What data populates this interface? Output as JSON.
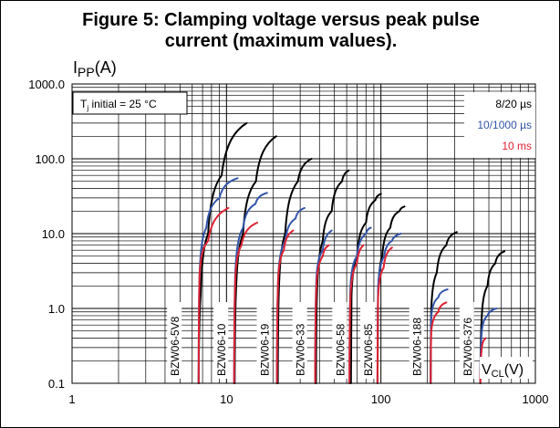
{
  "title_line1": "Figure 5: Clamping voltage versus peak pulse",
  "title_line2": "current (maximum values).",
  "chart_data": {
    "type": "line",
    "title": "Figure 5: Clamping voltage versus peak pulse current (maximum values).",
    "ylabel": "IPP(A)",
    "ylabel_main": "I",
    "ylabel_sub": "PP",
    "ylabel_unit": "(A)",
    "xlabel": "VCL(V)",
    "xlabel_main": "V",
    "xlabel_sub": "CL",
    "xlabel_unit": "(V)",
    "x_scale": "log",
    "y_scale": "log",
    "xlim": [
      1,
      1000
    ],
    "ylim": [
      0.1,
      1000
    ],
    "x_ticks": [
      {
        "v": 1,
        "label": "1"
      },
      {
        "v": 10,
        "label": "10"
      },
      {
        "v": 100,
        "label": "100"
      },
      {
        "v": 1000,
        "label": "1000"
      }
    ],
    "y_ticks": [
      {
        "v": 0.1,
        "label": "0.1"
      },
      {
        "v": 1,
        "label": "1.0"
      },
      {
        "v": 10,
        "label": "10.0"
      },
      {
        "v": 100,
        "label": "100.0"
      },
      {
        "v": 1000,
        "label": "1000.0"
      }
    ],
    "grid": true,
    "condition_label": "T",
    "condition_sub": "j",
    "condition_rest": " initial = 25 °C",
    "legend": [
      {
        "name": "8/20 µs",
        "color": "#000000"
      },
      {
        "name": "10/1000 µs",
        "color": "#3355aa"
      },
      {
        "name": "10 ms",
        "color": "#dd2233"
      }
    ],
    "devices": [
      {
        "name": "BZW06-5V8",
        "label_x": 4.6,
        "curves": [
          {
            "pulse": "8/20 µs",
            "color": "#000000",
            "points": [
              [
                6.6,
                0.1
              ],
              [
                6.8,
                1.5
              ],
              [
                7.6,
                10
              ],
              [
                9.3,
                60
              ],
              [
                13.5,
                300
              ]
            ]
          },
          {
            "pulse": "10/1000 µs",
            "color": "#3355aa",
            "points": [
              [
                6.6,
                0.1
              ],
              [
                6.7,
                3
              ],
              [
                7.4,
                12
              ],
              [
                9.0,
                30
              ],
              [
                11.8,
                55
              ]
            ]
          },
          {
            "pulse": "10 ms",
            "color": "#dd2233",
            "points": [
              [
                6.6,
                0.1
              ],
              [
                6.7,
                3
              ],
              [
                7.6,
                8
              ],
              [
                10.3,
                22
              ]
            ]
          }
        ]
      },
      {
        "name": "BZW06-10",
        "label_x": 9.2,
        "curves": [
          {
            "pulse": "8/20 µs",
            "color": "#000000",
            "points": [
              [
                11.3,
                0.1
              ],
              [
                11.5,
                1.5
              ],
              [
                12.8,
                10
              ],
              [
                15.5,
                50
              ],
              [
                21,
                200
              ]
            ]
          },
          {
            "pulse": "10/1000 µs",
            "color": "#3355aa",
            "points": [
              [
                11.2,
                0.1
              ],
              [
                11.4,
                3
              ],
              [
                12.8,
                12
              ],
              [
                15.4,
                25
              ],
              [
                18.3,
                35
              ]
            ]
          },
          {
            "pulse": "10 ms",
            "color": "#dd2233",
            "points": [
              [
                11.2,
                0.1
              ],
              [
                11.4,
                2.5
              ],
              [
                12.5,
                7
              ],
              [
                15.8,
                14
              ]
            ]
          }
        ]
      },
      {
        "name": "BZW06-19",
        "label_x": 17.5,
        "curves": [
          {
            "pulse": "8/20 µs",
            "color": "#000000",
            "points": [
              [
                21.5,
                0.1
              ],
              [
                21.8,
                1.5
              ],
              [
                24,
                10
              ],
              [
                29,
                50
              ],
              [
                35.5,
                100
              ]
            ]
          },
          {
            "pulse": "10/1000 µs",
            "color": "#3355aa",
            "points": [
              [
                21.2,
                0.1
              ],
              [
                21.6,
                2.5
              ],
              [
                24,
                8
              ],
              [
                28,
                16
              ],
              [
                32,
                22
              ]
            ]
          },
          {
            "pulse": "10 ms",
            "color": "#dd2233",
            "points": [
              [
                21.2,
                0.1
              ],
              [
                21.6,
                2.5
              ],
              [
                23.5,
                6
              ],
              [
                27,
                11
              ]
            ]
          }
        ]
      },
      {
        "name": "BZW06-33",
        "label_x": 29.8,
        "curves": [
          {
            "pulse": "8/20 µs",
            "color": "#000000",
            "points": [
              [
                38,
                0.1
              ],
              [
                38.5,
                1.5
              ],
              [
                42,
                8
              ],
              [
                48,
                20
              ],
              [
                56,
                50
              ],
              [
                62,
                70
              ]
            ]
          },
          {
            "pulse": "10/1000 µs",
            "color": "#3355aa",
            "points": [
              [
                37.5,
                0.1
              ],
              [
                38.2,
                2.5
              ],
              [
                42,
                6
              ],
              [
                48,
                11
              ]
            ]
          },
          {
            "pulse": "10 ms",
            "color": "#dd2233",
            "points": [
              [
                37.5,
                0.1
              ],
              [
                38.2,
                2
              ],
              [
                42,
                5
              ],
              [
                46,
                7
              ]
            ]
          }
        ]
      },
      {
        "name": "BZW06-58",
        "label_x": 54,
        "curves": [
          {
            "pulse": "8/20 µs",
            "color": "#000000",
            "points": [
              [
                64,
                0.1
              ],
              [
                64.5,
                1.5
              ],
              [
                70,
                5
              ],
              [
                80,
                14
              ],
              [
                92,
                28
              ],
              [
                100,
                34
              ]
            ]
          },
          {
            "pulse": "10/1000 µs",
            "color": "#3355aa",
            "points": [
              [
                62.5,
                0.1
              ],
              [
                63.5,
                2
              ],
              [
                70,
                5
              ],
              [
                80,
                10
              ],
              [
                86,
                12
              ]
            ]
          },
          {
            "pulse": "10 ms",
            "color": "#dd2233",
            "points": [
              [
                62.5,
                0.1
              ],
              [
                63.5,
                1.5
              ],
              [
                70,
                4
              ],
              [
                77,
                7
              ]
            ]
          }
        ]
      },
      {
        "name": "BZW06-85",
        "label_x": 82,
        "curves": [
          {
            "pulse": "8/20 µs",
            "color": "#000000",
            "points": [
              [
                95,
                0.1
              ],
              [
                95.8,
                1.5
              ],
              [
                102,
                5
              ],
              [
                115,
                12
              ],
              [
                132,
                20
              ],
              [
                142,
                23
              ]
            ]
          },
          {
            "pulse": "10/1000 µs",
            "color": "#3355aa",
            "points": [
              [
                95,
                0.1
              ],
              [
                96,
                2
              ],
              [
                105,
                5
              ],
              [
                118,
                8
              ],
              [
                135,
                10
              ]
            ]
          },
          {
            "pulse": "10 ms",
            "color": "#dd2233",
            "points": [
              [
                95,
                0.1
              ],
              [
                96,
                1.5
              ],
              [
                104,
                3.5
              ],
              [
                118,
                6.5
              ]
            ]
          }
        ]
      },
      {
        "name": "BZW06-188",
        "label_x": 170,
        "curves": [
          {
            "pulse": "8/20 µs",
            "color": "#000000",
            "points": [
              [
                210,
                0.1
              ],
              [
                212,
                1
              ],
              [
                230,
                3
              ],
              [
                265,
                7
              ],
              [
                310,
                10.5
              ]
            ]
          },
          {
            "pulse": "10/1000 µs",
            "color": "#3355aa",
            "points": [
              [
                210,
                0.1
              ],
              [
                212,
                0.8
              ],
              [
                235,
                1.4
              ],
              [
                270,
                1.8
              ]
            ]
          },
          {
            "pulse": "10 ms",
            "color": "#dd2233",
            "points": [
              [
                210,
                0.1
              ],
              [
                212,
                0.5
              ],
              [
                235,
                0.9
              ],
              [
                265,
                1.2
              ]
            ]
          }
        ]
      },
      {
        "name": "BZW06-376",
        "label_x": 360,
        "curves": [
          {
            "pulse": "8/20 µs",
            "color": "#000000",
            "points": [
              [
                440,
                0.1
              ],
              [
                450,
                0.8
              ],
              [
                490,
                2
              ],
              [
                550,
                4
              ],
              [
                630,
                5.8
              ]
            ]
          },
          {
            "pulse": "10/1000 µs",
            "color": "#3355aa",
            "points": [
              [
                440,
                0.1
              ],
              [
                450,
                0.5
              ],
              [
                490,
                0.8
              ],
              [
                560,
                1.0
              ]
            ]
          },
          {
            "pulse": "10 ms",
            "color": "#dd2233",
            "points": [
              [
                440,
                0.1
              ],
              [
                450,
                0.3
              ],
              [
                475,
                0.4
              ]
            ]
          }
        ]
      }
    ]
  }
}
